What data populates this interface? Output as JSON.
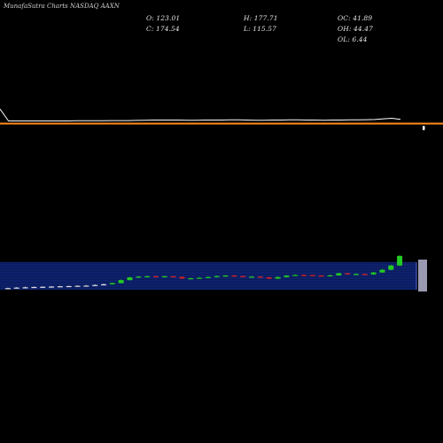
{
  "watermark": "MunafaSutra Charts NASDAQ AAXN",
  "ohlc": {
    "open": "O: 123.01",
    "high": "H: 177.71",
    "change_oc": "OC: 41.89",
    "close": "C: 174.54",
    "low": "L: 115.57",
    "change_oh": "OH: 44.47",
    "change_ol": "OL: 6.44"
  },
  "colors": {
    "price_line": "#ffffff",
    "baseline": "#ff8c1a",
    "volume_band": "#0a1a5c",
    "grid": "#2f4fd0",
    "up_candle": "#22cc22",
    "down_candle": "#dd2222",
    "flat_candle": "#dddddd"
  },
  "chart_data": [
    {
      "type": "line",
      "x": [
        0,
        1,
        2,
        3,
        4,
        5,
        6,
        7,
        8,
        9,
        10,
        11,
        12,
        13,
        14,
        15,
        16,
        17,
        18,
        19,
        20,
        21,
        22,
        23,
        24,
        25,
        26,
        27,
        28,
        29,
        30,
        31,
        32,
        33,
        34,
        35,
        36,
        37,
        38,
        39,
        40,
        41,
        42,
        43,
        44,
        45,
        46,
        47
      ],
      "values": [
        123,
        121,
        121,
        121,
        121,
        121,
        121,
        121,
        121,
        122,
        122,
        122,
        122,
        123,
        123,
        123,
        124,
        125,
        126,
        126,
        126,
        126,
        125,
        125,
        126,
        126,
        126,
        127,
        127,
        126,
        125,
        125,
        126,
        126,
        127,
        127,
        126,
        126,
        125,
        126,
        126,
        127,
        127,
        128,
        129,
        133,
        136,
        174.5
      ],
      "grid": false,
      "legend": "none"
    },
    {
      "type": "bar",
      "x": [
        0,
        1,
        2,
        3,
        4,
        5,
        6,
        7,
        8,
        9,
        10,
        11,
        12,
        13,
        14,
        15,
        16,
        17,
        18,
        19,
        20,
        21,
        22,
        23,
        24,
        25,
        26,
        27,
        28,
        29,
        30,
        31,
        32,
        33,
        34,
        35,
        36,
        37,
        38,
        39,
        40,
        41,
        42,
        43,
        44,
        45
      ],
      "open": [
        120,
        120.5,
        121,
        121.3,
        121.6,
        121.8,
        122,
        122.3,
        122.5,
        122.8,
        123,
        123.6,
        124.3,
        125.5,
        128.5,
        131.2,
        132,
        132.3,
        132.1,
        132.3,
        131.7,
        130.1,
        130.3,
        130.8,
        131.5,
        132.5,
        133,
        132.5,
        131.8,
        131.9,
        131.2,
        129.9,
        131.5,
        133,
        133.6,
        133.5,
        133.1,
        132.5,
        133.2,
        135.3,
        134.3,
        134.6,
        134.2,
        136.1,
        138.8,
        143
      ],
      "close": [
        120.5,
        121,
        121.3,
        121.6,
        121.8,
        122,
        122.3,
        122.5,
        122.8,
        123,
        123.6,
        124.3,
        125.5,
        128.5,
        131.2,
        132,
        132.3,
        132.1,
        132.3,
        131.7,
        130.1,
        130.3,
        130.8,
        131.5,
        132.5,
        133,
        132.5,
        131.8,
        131.9,
        131.2,
        129.9,
        131.5,
        133,
        133.6,
        133.5,
        133.1,
        132.5,
        133.2,
        135.3,
        134.3,
        134.6,
        134.2,
        136.1,
        138.8,
        143,
        152.6
      ],
      "high": [
        121,
        121.5,
        122,
        122,
        122.3,
        122.5,
        122.8,
        123,
        123.3,
        123.5,
        124.2,
        125,
        126,
        129.2,
        131.8,
        132.6,
        132.9,
        132.7,
        132.9,
        132.4,
        131.5,
        131,
        131.5,
        132.2,
        133.1,
        133.6,
        133.5,
        132.8,
        132.5,
        132.4,
        131.6,
        132.1,
        133.6,
        134.2,
        134.1,
        133.8,
        133.3,
        133.9,
        135.9,
        135.6,
        135.2,
        135,
        136.8,
        139.5,
        143.8,
        153.3
      ],
      "low": [
        119.6,
        120.1,
        120.6,
        121,
        121.2,
        121.4,
        121.7,
        121.9,
        122.1,
        122.4,
        122.7,
        123.2,
        123.9,
        125.1,
        128,
        130.7,
        131.6,
        131.8,
        131.7,
        131.3,
        129.6,
        129.5,
        130,
        130.4,
        131.1,
        132.1,
        132.2,
        131.5,
        131.3,
        130.8,
        129.5,
        129.6,
        131.1,
        132.6,
        133.1,
        132.7,
        132.1,
        132.2,
        132.8,
        134,
        133.8,
        133.8,
        133.7,
        135.6,
        138.3,
        142.5
      ],
      "grid": true,
      "legend": "none"
    }
  ]
}
